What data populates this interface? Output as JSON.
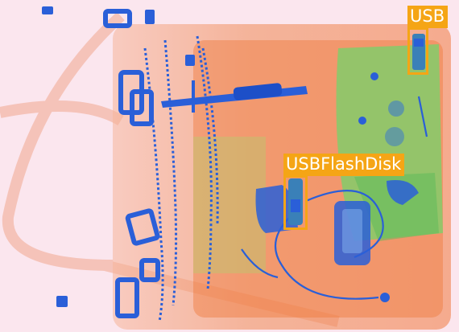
{
  "detections": [
    {
      "id": "usb-1",
      "label": "USB"
    },
    {
      "id": "usb-2",
      "label": "USBFlashDisk"
    }
  ],
  "colors": {
    "background": "#fbe6ee",
    "bag_organic": "#f07a45",
    "bag_inorganic": "#7ccf6a",
    "metal": "#2a5fd8",
    "annotation": "#f5a515"
  }
}
